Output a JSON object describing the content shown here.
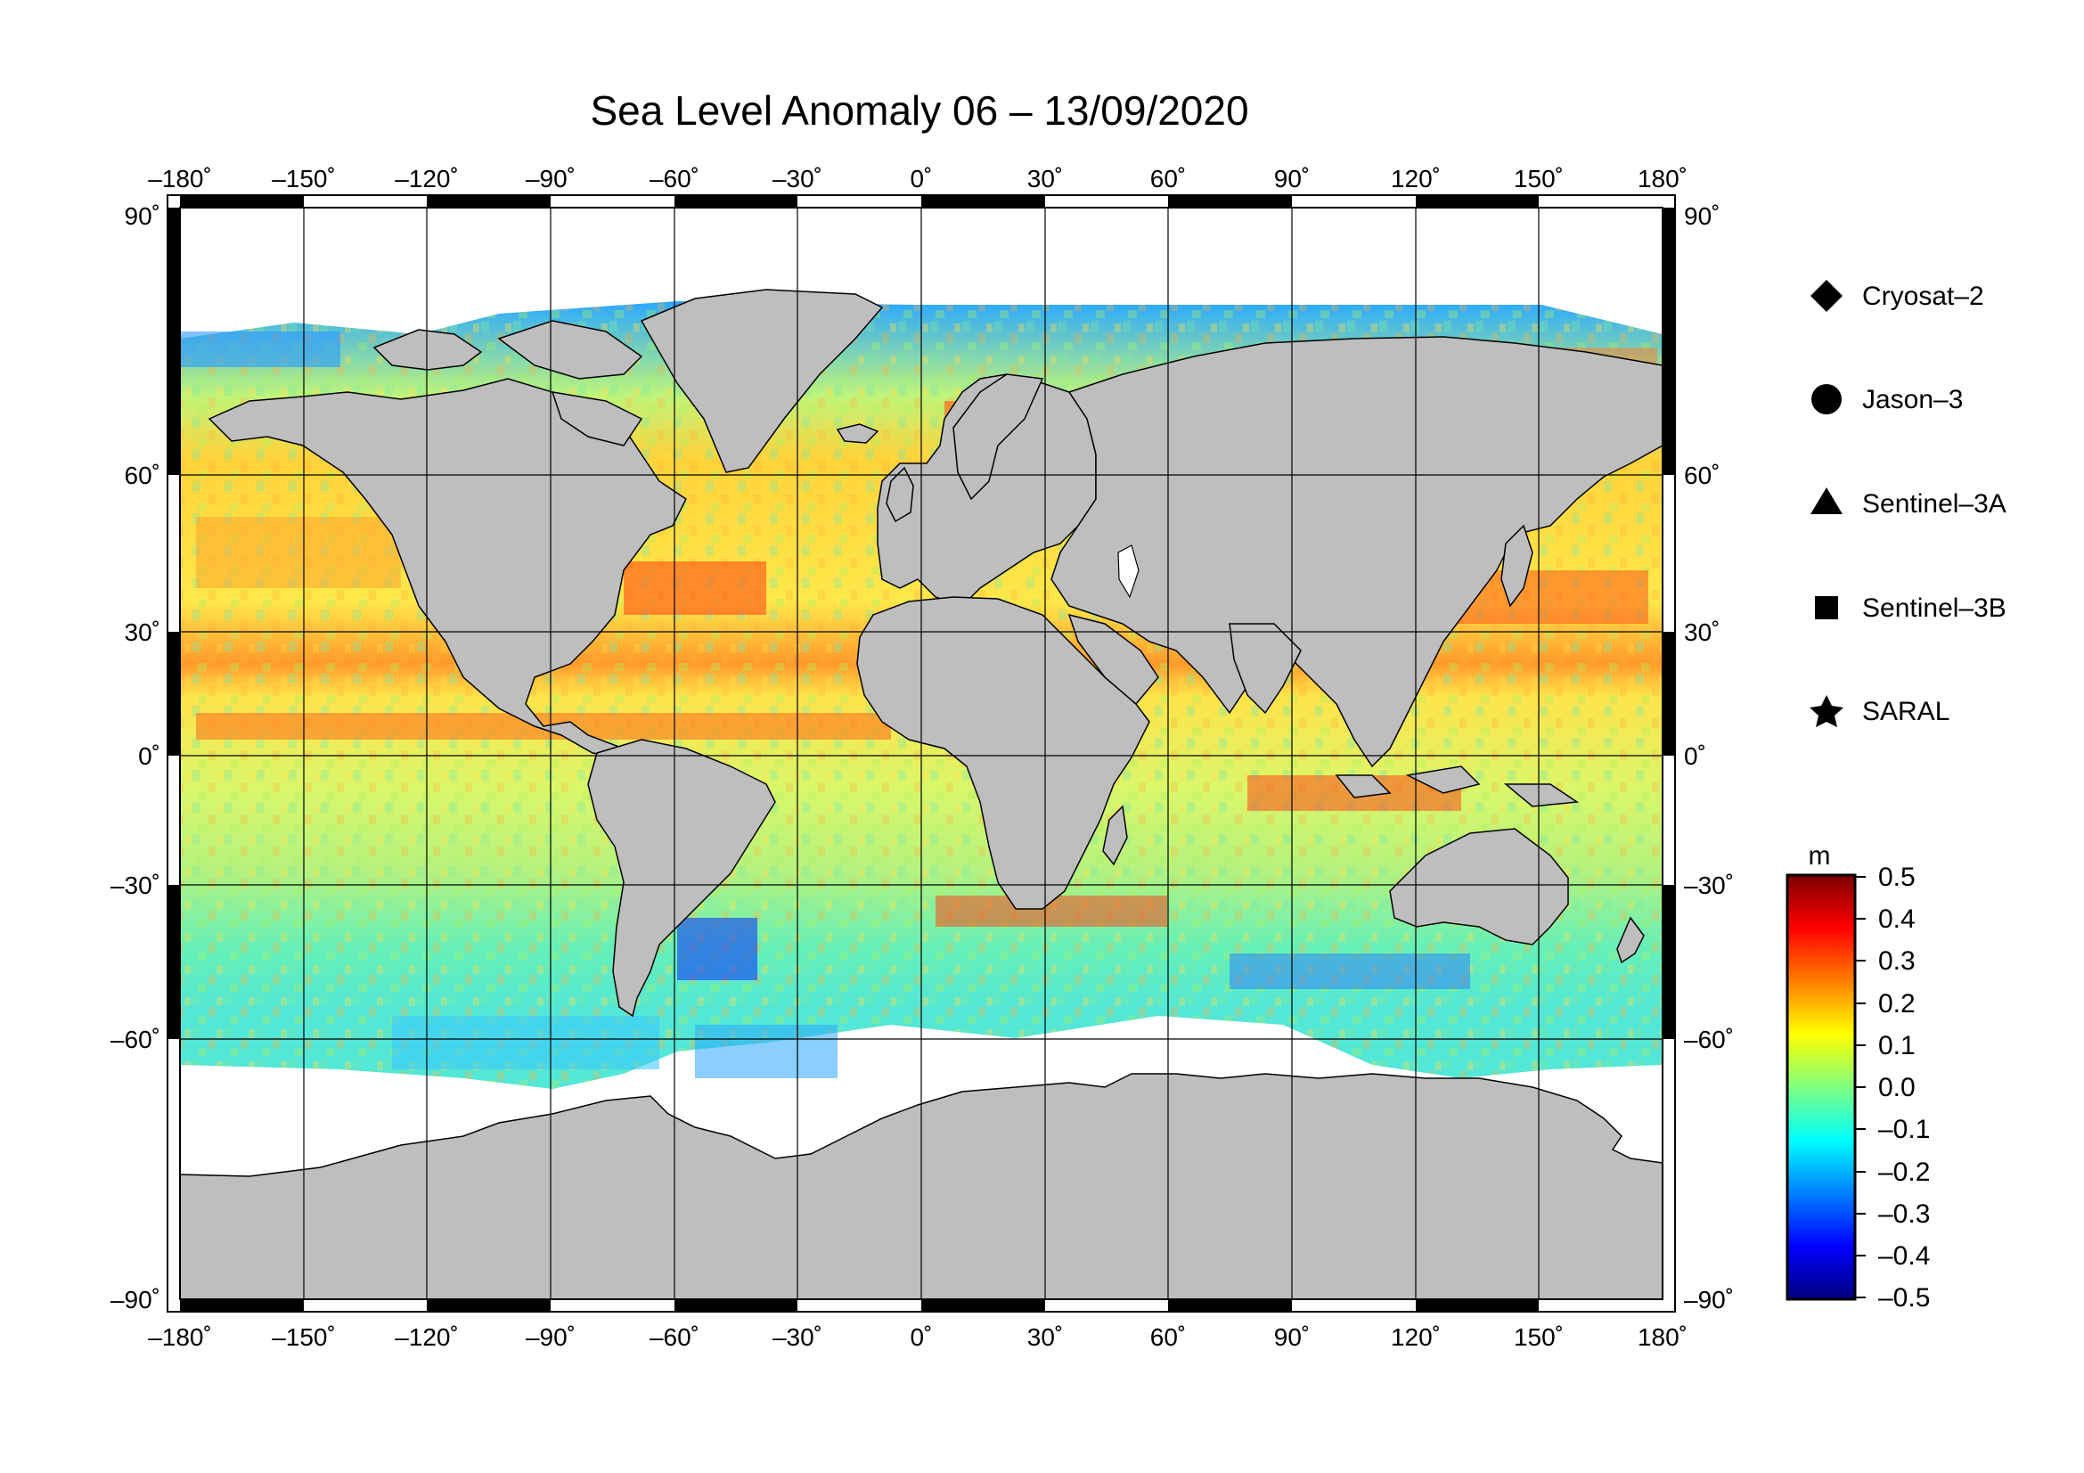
{
  "title": "Sea Level Anomaly 06 – 13/09/2020",
  "map": {
    "projection": "equirectangular",
    "lon_range": [
      -180,
      180
    ],
    "lat_range": [
      -90,
      90
    ],
    "lon_ticks": [
      "–180˚",
      "–150˚",
      "–120˚",
      "–90˚",
      "–60˚",
      "–30˚",
      "0˚",
      "30˚",
      "60˚",
      "90˚",
      "120˚",
      "150˚",
      "180˚"
    ],
    "lat_ticks": [
      "90˚",
      "60˚",
      "30˚",
      "0˚",
      "–30˚",
      "–60˚",
      "–90˚"
    ],
    "land_color": "#bebebe",
    "ice_color": "#ffffff",
    "grid": true
  },
  "legend": {
    "items": [
      {
        "label": "Cryosat–2",
        "symbol": "diamond-icon"
      },
      {
        "label": "Jason–3",
        "symbol": "circle-icon"
      },
      {
        "label": "Sentinel–3A",
        "symbol": "triangle-icon"
      },
      {
        "label": "Sentinel–3B",
        "symbol": "square-icon"
      },
      {
        "label": "SARAL",
        "symbol": "star-icon"
      }
    ]
  },
  "colorbar": {
    "unit": "m",
    "min": -0.5,
    "max": 0.5,
    "tick_labels": [
      "0.5",
      "0.4",
      "0.3",
      "0.2",
      "0.1",
      "0.0",
      "–0.1",
      "–0.2",
      "–0.3",
      "–0.4",
      "–0.5"
    ],
    "colors": [
      "#00007f",
      "#0000ff",
      "#007fff",
      "#00ffff",
      "#7fff7f",
      "#ffff00",
      "#ff7f00",
      "#ff0000",
      "#7f0000"
    ]
  }
}
